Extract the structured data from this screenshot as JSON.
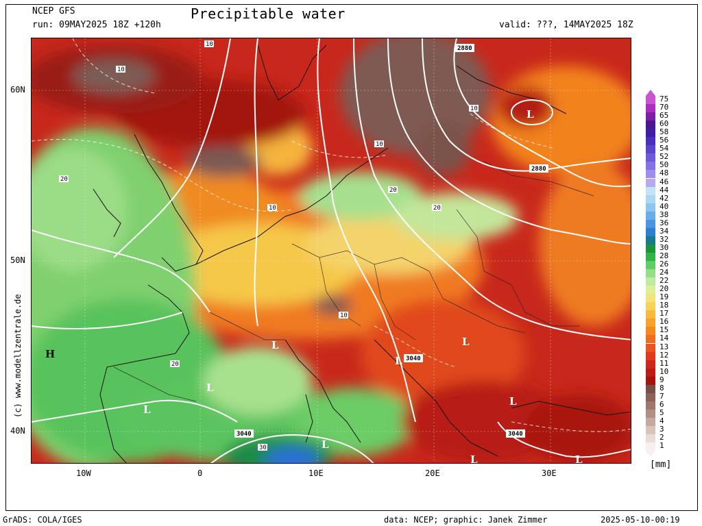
{
  "header": {
    "model": "NCEP GFS",
    "run": "run: 09MAY2025 18Z +120h",
    "title": "Precipitable water",
    "valid": "valid: ???, 14MAY2025 18Z"
  },
  "map": {
    "lat_labels": [
      "60N",
      "50N",
      "40N"
    ],
    "lon_labels": [
      "10W",
      "0",
      "10E",
      "20E",
      "30E"
    ],
    "contour_labels": [
      "10",
      "20",
      "30",
      "2880",
      "3040"
    ],
    "pressure_centers": [
      "H",
      "L"
    ],
    "colors": {
      "very_dry": "#7a5c55",
      "dark_red": "#a31612",
      "red": "#d8261c",
      "orange": "#f27a1b",
      "yellow": "#f6e17a",
      "light_green": "#a8e38a",
      "green": "#36b24a",
      "dark_green": "#157a30",
      "blue": "#2a6ed8",
      "border": "#111111",
      "contour": "#ffffff"
    }
  },
  "legend": {
    "units": "[mm]",
    "levels": [
      "1",
      "2",
      "3",
      "4",
      "5",
      "6",
      "7",
      "8",
      "9",
      "10",
      "11",
      "12",
      "13",
      "14",
      "15",
      "16",
      "17",
      "18",
      "19",
      "20",
      "22",
      "24",
      "26",
      "28",
      "30",
      "32",
      "34",
      "36",
      "38",
      "40",
      "42",
      "44",
      "46",
      "48",
      "50",
      "52",
      "54",
      "56",
      "58",
      "60",
      "65",
      "70",
      "75"
    ],
    "colors": [
      "#f7f0ee",
      "#eadbd6",
      "#d9c3bb",
      "#c5a99e",
      "#b28f84",
      "#9f776c",
      "#8b6158",
      "#7a4e47",
      "#a3140f",
      "#b81d16",
      "#cc291c",
      "#dd3a20",
      "#e85521",
      "#f06d1f",
      "#f3891f",
      "#f5a32a",
      "#f7bb3c",
      "#f7d25a",
      "#f5e27c",
      "#e1ee98",
      "#bfeaa0",
      "#94de86",
      "#62cc66",
      "#34b24a",
      "#1e9439",
      "#1a7a88",
      "#2e7fd1",
      "#4a94e0",
      "#6aaee8",
      "#8cc5ef",
      "#aad6f2",
      "#c3e4f6",
      "#b9a9ef",
      "#9f8fea",
      "#8573e1",
      "#6f5ad8",
      "#5a45cc",
      "#4a30b9",
      "#3e1fa3",
      "#4b178d",
      "#7a1fa6",
      "#a830bc",
      "#c855d0"
    ]
  },
  "footer": {
    "left": "GrADS: COLA/IGES",
    "center": "data: NCEP; graphic: Janek Zimmer",
    "right": "2025-05-10-00:19"
  },
  "credit": "(c)  www.modellzentrale.de"
}
